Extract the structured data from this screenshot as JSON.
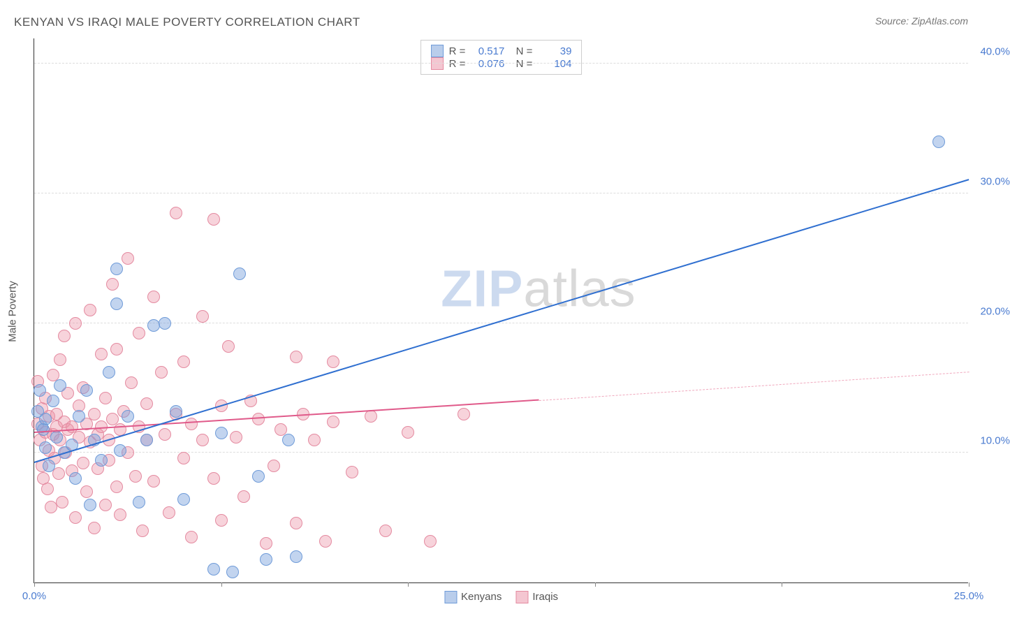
{
  "title": "KENYAN VS IRAQI MALE POVERTY CORRELATION CHART",
  "source_label": "Source:",
  "source_value": "ZipAtlas.com",
  "ylabel": "Male Poverty",
  "watermark": {
    "part1": "ZIP",
    "part2": "atlas"
  },
  "chart": {
    "type": "scatter+trend",
    "background_color": "#ffffff",
    "grid_color": "#dddddd",
    "axis_color": "#333333",
    "tick_label_color": "#4a7bd0",
    "xlim": [
      0,
      25
    ],
    "ylim": [
      0,
      42
    ],
    "yticks": [
      10,
      20,
      30,
      40
    ],
    "ytick_labels": [
      "10.0%",
      "20.0%",
      "30.0%",
      "40.0%"
    ],
    "xticks": [
      0,
      5,
      10,
      15,
      20,
      25
    ],
    "xtick_labels_shown": {
      "0": "0.0%",
      "25": "25.0%"
    },
    "marker_radius": 9,
    "marker_border_width": 1,
    "series": [
      {
        "name": "Kenyans",
        "fill": "rgba(120,160,220,0.45)",
        "stroke": "#6f9bd8",
        "swatch_fill": "#b9cdeb",
        "swatch_border": "#6f9bd8",
        "R": "0.517",
        "N": "39",
        "trend": {
          "x1": 0,
          "y1": 9.2,
          "x2": 25,
          "y2": 31.0,
          "color": "#2f6fd0",
          "width": 2.5
        },
        "points": [
          [
            0.1,
            13.2
          ],
          [
            0.15,
            14.8
          ],
          [
            0.2,
            12.0
          ],
          [
            0.25,
            11.8
          ],
          [
            0.3,
            12.6
          ],
          [
            0.3,
            10.4
          ],
          [
            0.4,
            9.0
          ],
          [
            0.5,
            14.0
          ],
          [
            0.6,
            11.2
          ],
          [
            0.7,
            15.2
          ],
          [
            0.8,
            10.0
          ],
          [
            1.0,
            10.6
          ],
          [
            1.1,
            8.0
          ],
          [
            1.2,
            12.8
          ],
          [
            1.4,
            14.8
          ],
          [
            1.5,
            6.0
          ],
          [
            1.6,
            11.0
          ],
          [
            1.8,
            9.4
          ],
          [
            2.0,
            16.2
          ],
          [
            2.2,
            24.2
          ],
          [
            2.2,
            21.5
          ],
          [
            2.3,
            10.2
          ],
          [
            2.5,
            12.8
          ],
          [
            2.8,
            6.2
          ],
          [
            3.0,
            11.0
          ],
          [
            3.2,
            19.8
          ],
          [
            3.5,
            20.0
          ],
          [
            3.8,
            13.2
          ],
          [
            4.0,
            6.4
          ],
          [
            4.8,
            1.0
          ],
          [
            5.0,
            11.5
          ],
          [
            5.3,
            0.8
          ],
          [
            5.5,
            23.8
          ],
          [
            6.0,
            8.2
          ],
          [
            6.2,
            1.8
          ],
          [
            6.8,
            11.0
          ],
          [
            7.0,
            2.0
          ],
          [
            24.2,
            34.0
          ]
        ]
      },
      {
        "name": "Iraqis",
        "fill": "rgba(235,145,165,0.40)",
        "stroke": "#e48aa0",
        "swatch_fill": "#f4c6d1",
        "swatch_border": "#e48aa0",
        "R": "0.076",
        "N": "104",
        "trend_solid": {
          "x1": 0,
          "y1": 11.5,
          "x2": 13.5,
          "y2": 14.0,
          "color": "#e05a8a",
          "width": 2.5
        },
        "trend_dash": {
          "x1": 13.5,
          "y1": 14.0,
          "x2": 25,
          "y2": 16.2,
          "color": "#f0a8bd",
          "width": 1.5
        },
        "points": [
          [
            0.1,
            15.5
          ],
          [
            0.1,
            12.2
          ],
          [
            0.15,
            11.0
          ],
          [
            0.2,
            9.0
          ],
          [
            0.2,
            13.4
          ],
          [
            0.25,
            8.0
          ],
          [
            0.3,
            11.6
          ],
          [
            0.3,
            14.2
          ],
          [
            0.35,
            7.2
          ],
          [
            0.4,
            10.2
          ],
          [
            0.4,
            12.8
          ],
          [
            0.45,
            5.8
          ],
          [
            0.5,
            11.4
          ],
          [
            0.5,
            16.0
          ],
          [
            0.55,
            9.6
          ],
          [
            0.6,
            13.0
          ],
          [
            0.6,
            12.0
          ],
          [
            0.65,
            8.4
          ],
          [
            0.7,
            11.0
          ],
          [
            0.7,
            17.2
          ],
          [
            0.75,
            6.2
          ],
          [
            0.8,
            19.0
          ],
          [
            0.8,
            12.4
          ],
          [
            0.85,
            10.0
          ],
          [
            0.9,
            11.8
          ],
          [
            0.9,
            14.6
          ],
          [
            1.0,
            8.6
          ],
          [
            1.0,
            12.0
          ],
          [
            1.1,
            20.0
          ],
          [
            1.1,
            5.0
          ],
          [
            1.2,
            11.2
          ],
          [
            1.2,
            13.6
          ],
          [
            1.3,
            9.2
          ],
          [
            1.3,
            15.0
          ],
          [
            1.4,
            7.0
          ],
          [
            1.4,
            12.2
          ],
          [
            1.5,
            21.0
          ],
          [
            1.5,
            10.8
          ],
          [
            1.6,
            4.2
          ],
          [
            1.6,
            13.0
          ],
          [
            1.7,
            11.4
          ],
          [
            1.7,
            8.8
          ],
          [
            1.8,
            17.6
          ],
          [
            1.8,
            12.0
          ],
          [
            1.9,
            6.0
          ],
          [
            1.9,
            14.2
          ],
          [
            2.0,
            11.0
          ],
          [
            2.0,
            9.4
          ],
          [
            2.1,
            23.0
          ],
          [
            2.1,
            12.6
          ],
          [
            2.2,
            18.0
          ],
          [
            2.2,
            7.4
          ],
          [
            2.3,
            11.8
          ],
          [
            2.3,
            5.2
          ],
          [
            2.4,
            13.2
          ],
          [
            2.5,
            25.0
          ],
          [
            2.5,
            10.0
          ],
          [
            2.6,
            15.4
          ],
          [
            2.7,
            8.2
          ],
          [
            2.8,
            19.2
          ],
          [
            2.8,
            12.0
          ],
          [
            2.9,
            4.0
          ],
          [
            3.0,
            13.8
          ],
          [
            3.0,
            11.0
          ],
          [
            3.2,
            22.0
          ],
          [
            3.2,
            7.8
          ],
          [
            3.4,
            16.2
          ],
          [
            3.5,
            11.4
          ],
          [
            3.6,
            5.4
          ],
          [
            3.8,
            28.5
          ],
          [
            3.8,
            13.0
          ],
          [
            4.0,
            17.0
          ],
          [
            4.0,
            9.6
          ],
          [
            4.2,
            12.2
          ],
          [
            4.2,
            3.5
          ],
          [
            4.5,
            20.5
          ],
          [
            4.5,
            11.0
          ],
          [
            4.8,
            28.0
          ],
          [
            4.8,
            8.0
          ],
          [
            5.0,
            13.6
          ],
          [
            5.0,
            4.8
          ],
          [
            5.2,
            18.2
          ],
          [
            5.4,
            11.2
          ],
          [
            5.6,
            6.6
          ],
          [
            5.8,
            14.0
          ],
          [
            6.0,
            12.6
          ],
          [
            6.2,
            3.0
          ],
          [
            6.4,
            9.0
          ],
          [
            6.6,
            11.8
          ],
          [
            7.0,
            17.4
          ],
          [
            7.0,
            4.6
          ],
          [
            7.2,
            13.0
          ],
          [
            7.5,
            11.0
          ],
          [
            7.8,
            3.2
          ],
          [
            8.0,
            12.4
          ],
          [
            8.0,
            17.0
          ],
          [
            8.5,
            8.5
          ],
          [
            9.0,
            12.8
          ],
          [
            9.4,
            4.0
          ],
          [
            10.0,
            11.6
          ],
          [
            10.6,
            3.2
          ],
          [
            11.5,
            13.0
          ]
        ]
      }
    ]
  }
}
